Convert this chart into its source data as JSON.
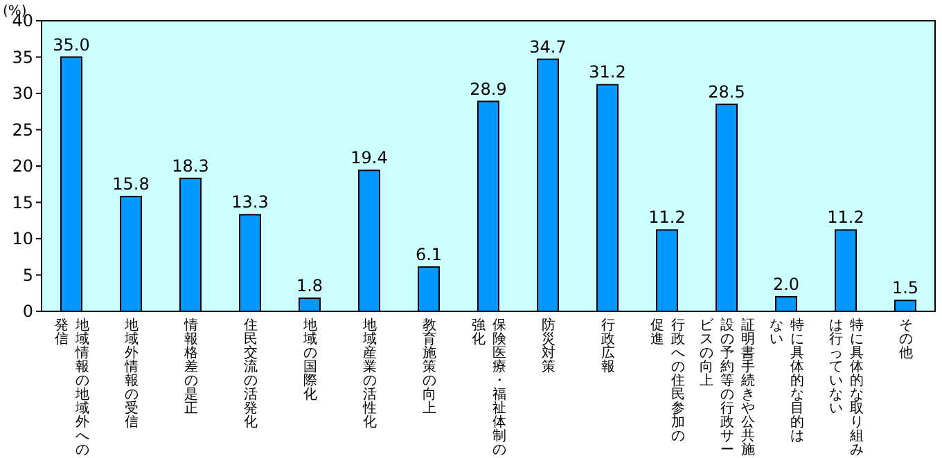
{
  "chart_data": {
    "type": "bar",
    "ylabel": "(%)",
    "categories": [
      "地域情報の地域外への発信",
      "地域外情報の受信",
      "情報格差の是正",
      "住民交流の活発化",
      "地域の国際化",
      "地域産業の活性化",
      "教育施策の向上",
      "保険医療・福祉体制の強化",
      "防災対策",
      "行政広報",
      "行政への住民参加の促進",
      "証明書手続きや公共施設の予約等の行政サービスの向上",
      "特に具体的な目的はない",
      "特に具体的な取り組みは行っていない",
      "その他"
    ],
    "values": [
      35.0,
      15.8,
      18.3,
      13.3,
      1.8,
      19.4,
      6.1,
      28.9,
      34.7,
      31.2,
      11.2,
      28.5,
      2.0,
      11.2,
      1.5
    ],
    "value_labels": [
      "35.0",
      "15.8",
      "18.3",
      "13.3",
      "1.8",
      "19.4",
      "6.1",
      "28.9",
      "34.7",
      "31.2",
      "11.2",
      "28.5",
      "2.0",
      "11.2",
      "1.5"
    ],
    "color": "#0099ff",
    "ylim": [
      0,
      40
    ],
    "yticks": [
      0,
      5,
      10,
      15,
      20,
      25,
      30,
      35,
      40
    ],
    "grid": false
  }
}
